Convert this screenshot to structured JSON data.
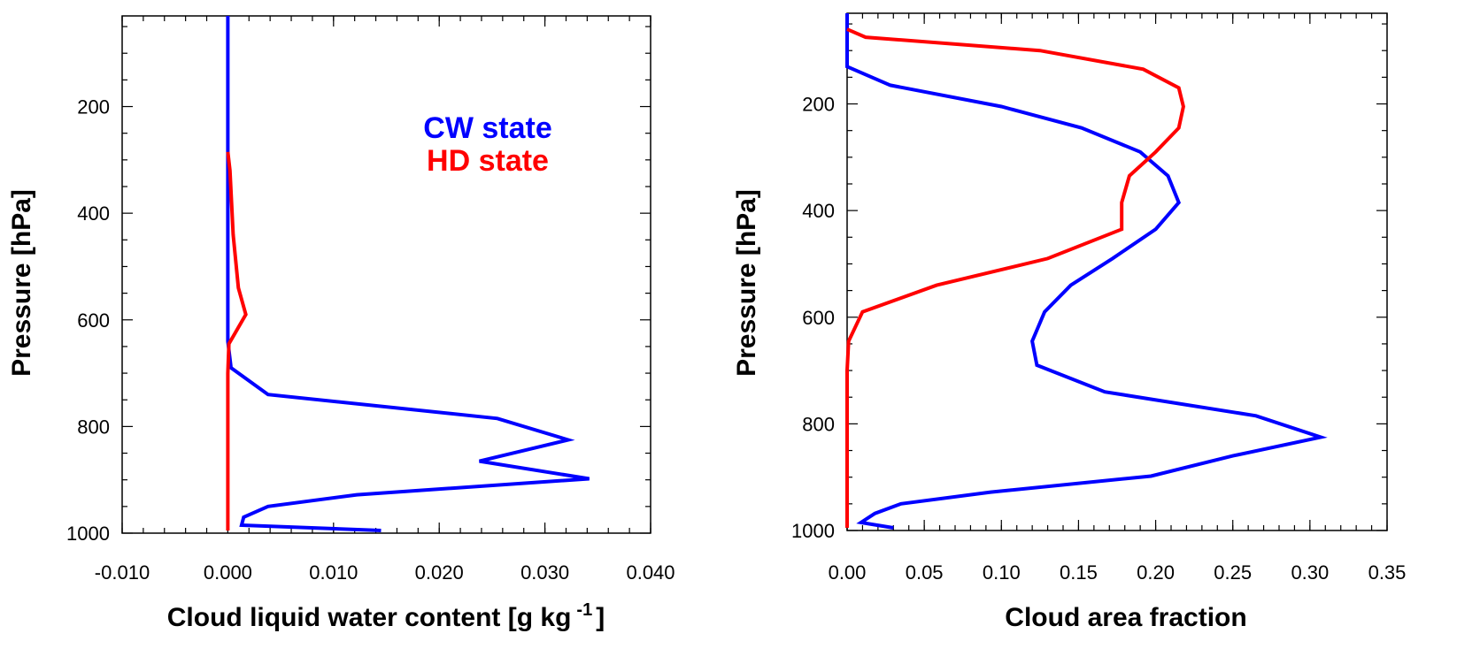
{
  "chart_data": [
    {
      "type": "line",
      "xlabel": "Cloud liquid water content [g kg",
      "xlabel_sup": "-1",
      "xlabel_end": "]",
      "ylabel": "Pressure [hPa]",
      "xlim": [
        -0.01,
        0.04
      ],
      "ylim": [
        1000,
        30
      ],
      "y_inverted": true,
      "xticks": [
        "-0.010",
        "0.000",
        "0.010",
        "0.020",
        "0.030",
        "0.040"
      ],
      "xtick_values": [
        -0.01,
        0.0,
        0.01,
        0.02,
        0.03,
        0.04
      ],
      "yticks": [
        "200",
        "400",
        "600",
        "800",
        "1000"
      ],
      "ytick_values": [
        200,
        400,
        600,
        800,
        1000
      ],
      "legend_placement": "upper-right",
      "series": [
        {
          "name": "CW state",
          "color": "#0000ff",
          "points": [
            [
              0.0,
              30
            ],
            [
              0.0,
              100
            ],
            [
              0.0,
              200
            ],
            [
              0.0,
              300
            ],
            [
              0.0,
              400
            ],
            [
              0.0,
              500
            ],
            [
              0.0,
              600
            ],
            [
              0.0,
              640
            ],
            [
              0.0003,
              690
            ],
            [
              0.0038,
              740
            ],
            [
              0.0255,
              785
            ],
            [
              0.0322,
              825
            ],
            [
              0.0238,
              865
            ],
            [
              0.0342,
              898
            ],
            [
              0.0122,
              928
            ],
            [
              0.0038,
              950
            ],
            [
              0.0015,
              970
            ],
            [
              0.0013,
              985
            ],
            [
              0.0145,
              995
            ]
          ]
        },
        {
          "name": "HD state",
          "color": "#ff0000",
          "points": [
            [
              0.0,
              285
            ],
            [
              0.0002,
              320
            ],
            [
              0.0005,
              440
            ],
            [
              0.001,
              540
            ],
            [
              0.0017,
              590
            ],
            [
              0.0001,
              645
            ],
            [
              0.0,
              700
            ],
            [
              0.0,
              800
            ],
            [
              0.0,
              900
            ],
            [
              0.0,
              995
            ]
          ]
        }
      ]
    },
    {
      "type": "line",
      "xlabel": "Cloud area fraction",
      "ylabel": "Pressure [hPa]",
      "xlim": [
        0.0,
        0.35
      ],
      "ylim": [
        1000,
        30
      ],
      "y_inverted": true,
      "xticks": [
        "0.00",
        "0.05",
        "0.10",
        "0.15",
        "0.20",
        "0.25",
        "0.30",
        "0.35"
      ],
      "xtick_values": [
        0.0,
        0.05,
        0.1,
        0.15,
        0.2,
        0.25,
        0.3,
        0.35
      ],
      "yticks": [
        "200",
        "400",
        "600",
        "800",
        "1000"
      ],
      "ytick_values": [
        200,
        400,
        600,
        800,
        1000
      ],
      "series": [
        {
          "name": "CW state",
          "color": "#0000ff",
          "points": [
            [
              0.0,
              30
            ],
            [
              0.0,
              100
            ],
            [
              0.0,
              130
            ],
            [
              0.028,
              165
            ],
            [
              0.1,
              205
            ],
            [
              0.152,
              245
            ],
            [
              0.19,
              290
            ],
            [
              0.208,
              335
            ],
            [
              0.215,
              385
            ],
            [
              0.2,
              435
            ],
            [
              0.172,
              490
            ],
            [
              0.145,
              540
            ],
            [
              0.128,
              590
            ],
            [
              0.12,
              645
            ],
            [
              0.123,
              690
            ],
            [
              0.167,
              740
            ],
            [
              0.265,
              785
            ],
            [
              0.307,
              825
            ],
            [
              0.25,
              860
            ],
            [
              0.197,
              898
            ],
            [
              0.093,
              928
            ],
            [
              0.035,
              950
            ],
            [
              0.018,
              968
            ],
            [
              0.009,
              985
            ],
            [
              0.03,
              995
            ]
          ]
        },
        {
          "name": "HD state",
          "color": "#ff0000",
          "points": [
            [
              0.0,
              60
            ],
            [
              0.012,
              75
            ],
            [
              0.125,
              100
            ],
            [
              0.192,
              135
            ],
            [
              0.215,
              170
            ],
            [
              0.218,
              205
            ],
            [
              0.215,
              245
            ],
            [
              0.2,
              290
            ],
            [
              0.183,
              335
            ],
            [
              0.178,
              385
            ],
            [
              0.178,
              435
            ],
            [
              0.13,
              490
            ],
            [
              0.058,
              540
            ],
            [
              0.01,
              590
            ],
            [
              0.001,
              645
            ],
            [
              0.0,
              700
            ],
            [
              0.0,
              800
            ],
            [
              0.0,
              900
            ],
            [
              0.0,
              995
            ]
          ]
        }
      ]
    }
  ]
}
